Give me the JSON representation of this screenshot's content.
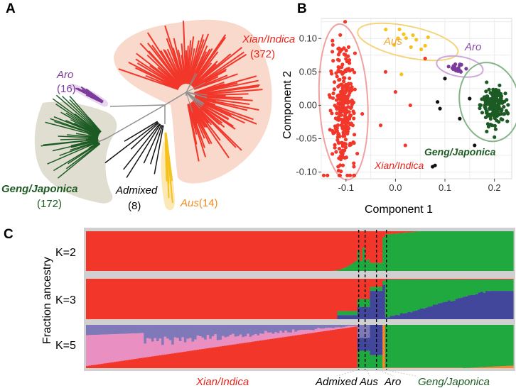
{
  "panels": {
    "a": "A",
    "b": "B",
    "c": "C"
  },
  "colors": {
    "xian": "#f2362a",
    "geng": "#1d5b24",
    "aus": "#f6c21d",
    "aro": "#7c3b9a",
    "admixed": "#111111",
    "grey": "#8f8f8f",
    "green_anc": "#1fa93f",
    "blue_anc": "#43479b",
    "pink_anc": "#ea8fc1",
    "orange_anc": "#f6872c",
    "purple_anc": "#7f79b9"
  },
  "tree": {
    "groups": [
      {
        "id": "xian",
        "name": "Xian/Indica",
        "count": "(372)"
      },
      {
        "id": "aro",
        "name": "Aro",
        "count": "(16)"
      },
      {
        "id": "geng",
        "name": "Geng/Japonica",
        "count": "(172)"
      },
      {
        "id": "admixed",
        "name": "Admixed",
        "count": "(8)"
      },
      {
        "id": "aus",
        "name": "Aus",
        "count": "(14)"
      }
    ]
  },
  "pca": {
    "xlabel": "Component 1",
    "ylabel": "Component 2",
    "xticks": [
      "-0.1",
      "0.0",
      "0.1",
      "0.2"
    ],
    "yticks": [
      "0.10",
      "0.05",
      "0.00",
      "-0.05",
      "-0.10"
    ],
    "labels": {
      "aus": "Aus",
      "aro": "Aro",
      "geng": "Geng/Japonica",
      "xian": "Xian/Indica"
    }
  },
  "chart_data": {
    "type": "scatter",
    "title": "",
    "xlabel": "Component 1",
    "ylabel": "Component 2",
    "xlim": [
      -0.15,
      0.235
    ],
    "ylim": [
      -0.11,
      0.13
    ],
    "grid": true,
    "series": [
      {
        "name": "Xian/Indica",
        "color": "#f2362a",
        "center": [
          -0.105,
          -0.005
        ],
        "spread": [
          0.012,
          0.045
        ],
        "n": 372
      },
      {
        "name": "Aus",
        "color": "#f6c21d",
        "center": [
          0.02,
          0.095
        ],
        "spread": [
          0.035,
          0.012
        ],
        "n": 14
      },
      {
        "name": "Aro",
        "color": "#7c3b9a",
        "center": [
          0.125,
          0.055
        ],
        "spread": [
          0.01,
          0.006
        ],
        "n": 16
      },
      {
        "name": "Geng/Japonica",
        "color": "#1d5b24",
        "center": [
          0.2,
          0.0
        ],
        "spread": [
          0.012,
          0.015
        ],
        "n": 172
      },
      {
        "name": "Admixed",
        "color": "#111111",
        "points": [
          [
            0.08,
            -0.09
          ],
          [
            0.075,
            -0.092
          ],
          [
            0.09,
            -0.005
          ],
          [
            0.1,
            0.04
          ],
          [
            0.15,
            0.01
          ],
          [
            0.13,
            -0.02
          ],
          [
            0.16,
            -0.06
          ],
          [
            0.085,
            0.005
          ]
        ]
      }
    ]
  },
  "admixture": {
    "ylabel": "Fraction ancestry",
    "rows": [
      "K=2",
      "K=3",
      "K=5"
    ],
    "group_labels": {
      "xian": "Xian/Indica",
      "admixed": "Admixed",
      "aus": "Aus",
      "aro": "Aro",
      "geng": "Geng/Japonica"
    }
  }
}
